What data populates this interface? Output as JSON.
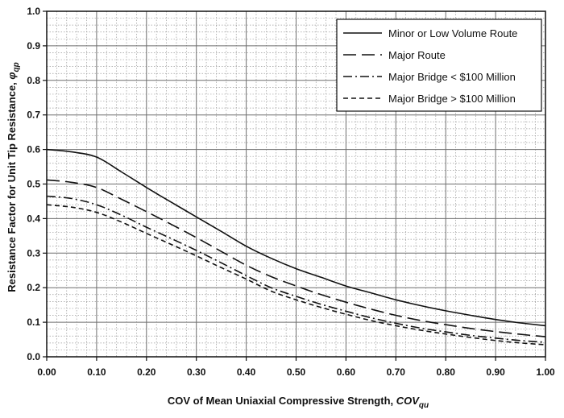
{
  "chart_data": {
    "type": "line",
    "title": "",
    "xlabel": "COV of Mean Uniaxial Compressive Strength, ",
    "xlabel_symbol": "COV",
    "xlabel_sub": "qu",
    "ylabel": "Resistance Factor for Unit Tip Resistance, ",
    "ylabel_symbol": "φ",
    "ylabel_sub": "qp",
    "xlim": [
      0,
      1
    ],
    "ylim": [
      0,
      1
    ],
    "grid": true,
    "legend_position": "top-right",
    "x_ticks": [
      "0.00",
      "0.10",
      "0.20",
      "0.30",
      "0.40",
      "0.50",
      "0.60",
      "0.70",
      "0.80",
      "0.90",
      "1.00"
    ],
    "y_ticks": [
      "0.0",
      "0.1",
      "0.2",
      "0.3",
      "0.4",
      "0.5",
      "0.6",
      "0.7",
      "0.8",
      "0.9",
      "1.0"
    ],
    "series": [
      {
        "name": "Minor or Low Volume Route",
        "dash": "solid",
        "x": [
          0.0,
          0.05,
          0.1,
          0.15,
          0.2,
          0.25,
          0.3,
          0.35,
          0.4,
          0.45,
          0.5,
          0.55,
          0.6,
          0.65,
          0.7,
          0.75,
          0.8,
          0.85,
          0.9,
          0.95,
          1.0
        ],
        "y": [
          0.6,
          0.593,
          0.578,
          0.535,
          0.49,
          0.447,
          0.405,
          0.363,
          0.32,
          0.285,
          0.255,
          0.23,
          0.205,
          0.185,
          0.165,
          0.148,
          0.133,
          0.12,
          0.108,
          0.098,
          0.09
        ]
      },
      {
        "name": "Major Route",
        "dash": "long-dash",
        "x": [
          0.0,
          0.05,
          0.1,
          0.15,
          0.2,
          0.25,
          0.3,
          0.35,
          0.4,
          0.45,
          0.5,
          0.55,
          0.6,
          0.65,
          0.7,
          0.75,
          0.8,
          0.85,
          0.9,
          0.95,
          1.0
        ],
        "y": [
          0.512,
          0.505,
          0.49,
          0.456,
          0.42,
          0.383,
          0.345,
          0.305,
          0.265,
          0.232,
          0.205,
          0.18,
          0.158,
          0.138,
          0.12,
          0.105,
          0.093,
          0.082,
          0.073,
          0.065,
          0.058
        ]
      },
      {
        "name": "Major Bridge < $100 Million",
        "dash": "dash-dot",
        "x": [
          0.0,
          0.05,
          0.1,
          0.15,
          0.2,
          0.25,
          0.3,
          0.35,
          0.4,
          0.45,
          0.5,
          0.55,
          0.6,
          0.65,
          0.7,
          0.75,
          0.8,
          0.85,
          0.9,
          0.95,
          1.0
        ],
        "y": [
          0.465,
          0.458,
          0.44,
          0.41,
          0.375,
          0.342,
          0.308,
          0.272,
          0.235,
          0.2,
          0.175,
          0.152,
          0.132,
          0.113,
          0.097,
          0.083,
          0.072,
          0.062,
          0.054,
          0.047,
          0.042
        ]
      },
      {
        "name": "Major Bridge > $100 Million",
        "dash": "short-dash",
        "x": [
          0.0,
          0.05,
          0.1,
          0.15,
          0.2,
          0.25,
          0.3,
          0.35,
          0.4,
          0.45,
          0.5,
          0.55,
          0.6,
          0.65,
          0.7,
          0.75,
          0.8,
          0.85,
          0.9,
          0.95,
          1.0
        ],
        "y": [
          0.44,
          0.433,
          0.418,
          0.39,
          0.357,
          0.325,
          0.292,
          0.258,
          0.225,
          0.19,
          0.165,
          0.143,
          0.123,
          0.105,
          0.09,
          0.077,
          0.066,
          0.056,
          0.047,
          0.04,
          0.035
        ]
      }
    ]
  }
}
